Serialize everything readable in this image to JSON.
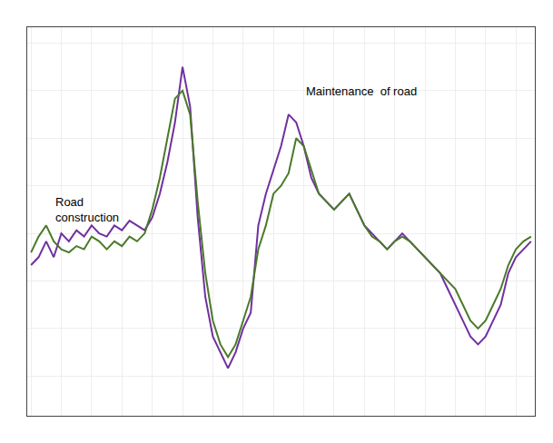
{
  "chart_data": {
    "type": "line",
    "x": [
      0,
      1,
      2,
      3,
      4,
      5,
      6,
      7,
      8,
      9,
      10,
      11,
      12,
      13,
      14,
      15,
      16,
      17,
      18,
      19,
      20,
      21,
      22,
      23,
      24,
      25,
      26,
      27,
      28,
      29,
      30,
      31,
      32,
      33,
      34,
      35,
      36,
      37,
      38,
      39,
      40,
      41,
      42,
      43,
      44,
      45,
      46,
      47,
      48,
      49,
      50,
      51,
      52,
      53,
      54,
      55,
      56,
      57,
      58,
      59,
      60,
      61,
      62,
      63,
      64,
      65,
      66
    ],
    "series": [
      {
        "color": "#7030A0",
        "values": [
          1.0,
          1.5,
          2.5,
          1.5,
          3.0,
          2.5,
          3.2,
          2.8,
          3.5,
          3.0,
          2.8,
          3.5,
          3.2,
          3.8,
          3.5,
          3.2,
          4.0,
          5.5,
          7.5,
          10.0,
          13.5,
          11.0,
          4.0,
          -1.0,
          -3.5,
          -4.5,
          -5.5,
          -4.5,
          -3.0,
          -2.0,
          3.5,
          5.5,
          7.0,
          8.5,
          10.5,
          10.0,
          8.5,
          6.5,
          5.5,
          5.0,
          4.5,
          5.0,
          5.5,
          4.5,
          3.5,
          3.0,
          2.5,
          2.0,
          2.5,
          3.0,
          2.5,
          2.0,
          1.5,
          1.0,
          0.5,
          -0.5,
          -1.5,
          -2.5,
          -3.5,
          -4.0,
          -3.5,
          -2.5,
          -1.5,
          0.5,
          1.5,
          2.0,
          2.5
        ]
      },
      {
        "color": "#4a7a28",
        "values": [
          1.8,
          2.8,
          3.5,
          2.5,
          2.0,
          1.8,
          2.2,
          2.0,
          2.8,
          2.5,
          2.0,
          2.5,
          2.2,
          2.8,
          2.5,
          3.0,
          4.5,
          6.5,
          9.0,
          11.5,
          12.0,
          10.5,
          5.0,
          0.5,
          -2.5,
          -4.0,
          -4.8,
          -4.0,
          -2.5,
          -1.0,
          2.0,
          3.5,
          5.5,
          6.0,
          6.8,
          9.0,
          8.5,
          7.0,
          5.5,
          5.0,
          4.5,
          5.0,
          5.5,
          4.5,
          3.5,
          2.8,
          2.5,
          2.0,
          2.5,
          2.8,
          2.5,
          2.0,
          1.5,
          1.0,
          0.5,
          0.0,
          -0.5,
          -1.5,
          -2.5,
          -3.0,
          -2.5,
          -1.5,
          -0.5,
          1.0,
          2.0,
          2.5,
          2.8
        ]
      }
    ],
    "xlim": [
      -0.5,
      66.5
    ],
    "xticks": [
      0,
      4,
      8,
      12,
      16,
      20,
      24,
      28,
      32,
      36,
      40,
      44,
      48,
      52,
      56,
      60,
      64
    ],
    "ylim": [
      -8.5,
      16.0
    ],
    "yticks": [
      -6,
      -3,
      0,
      3,
      6,
      9,
      12,
      15
    ],
    "grid": true,
    "tick_labels": false,
    "annotations": [
      {
        "text": "Road\nconstruction",
        "x": 3,
        "y": 5.5
      },
      {
        "text": "Maintenance  of road",
        "x": 36,
        "y": 12.5
      }
    ]
  }
}
